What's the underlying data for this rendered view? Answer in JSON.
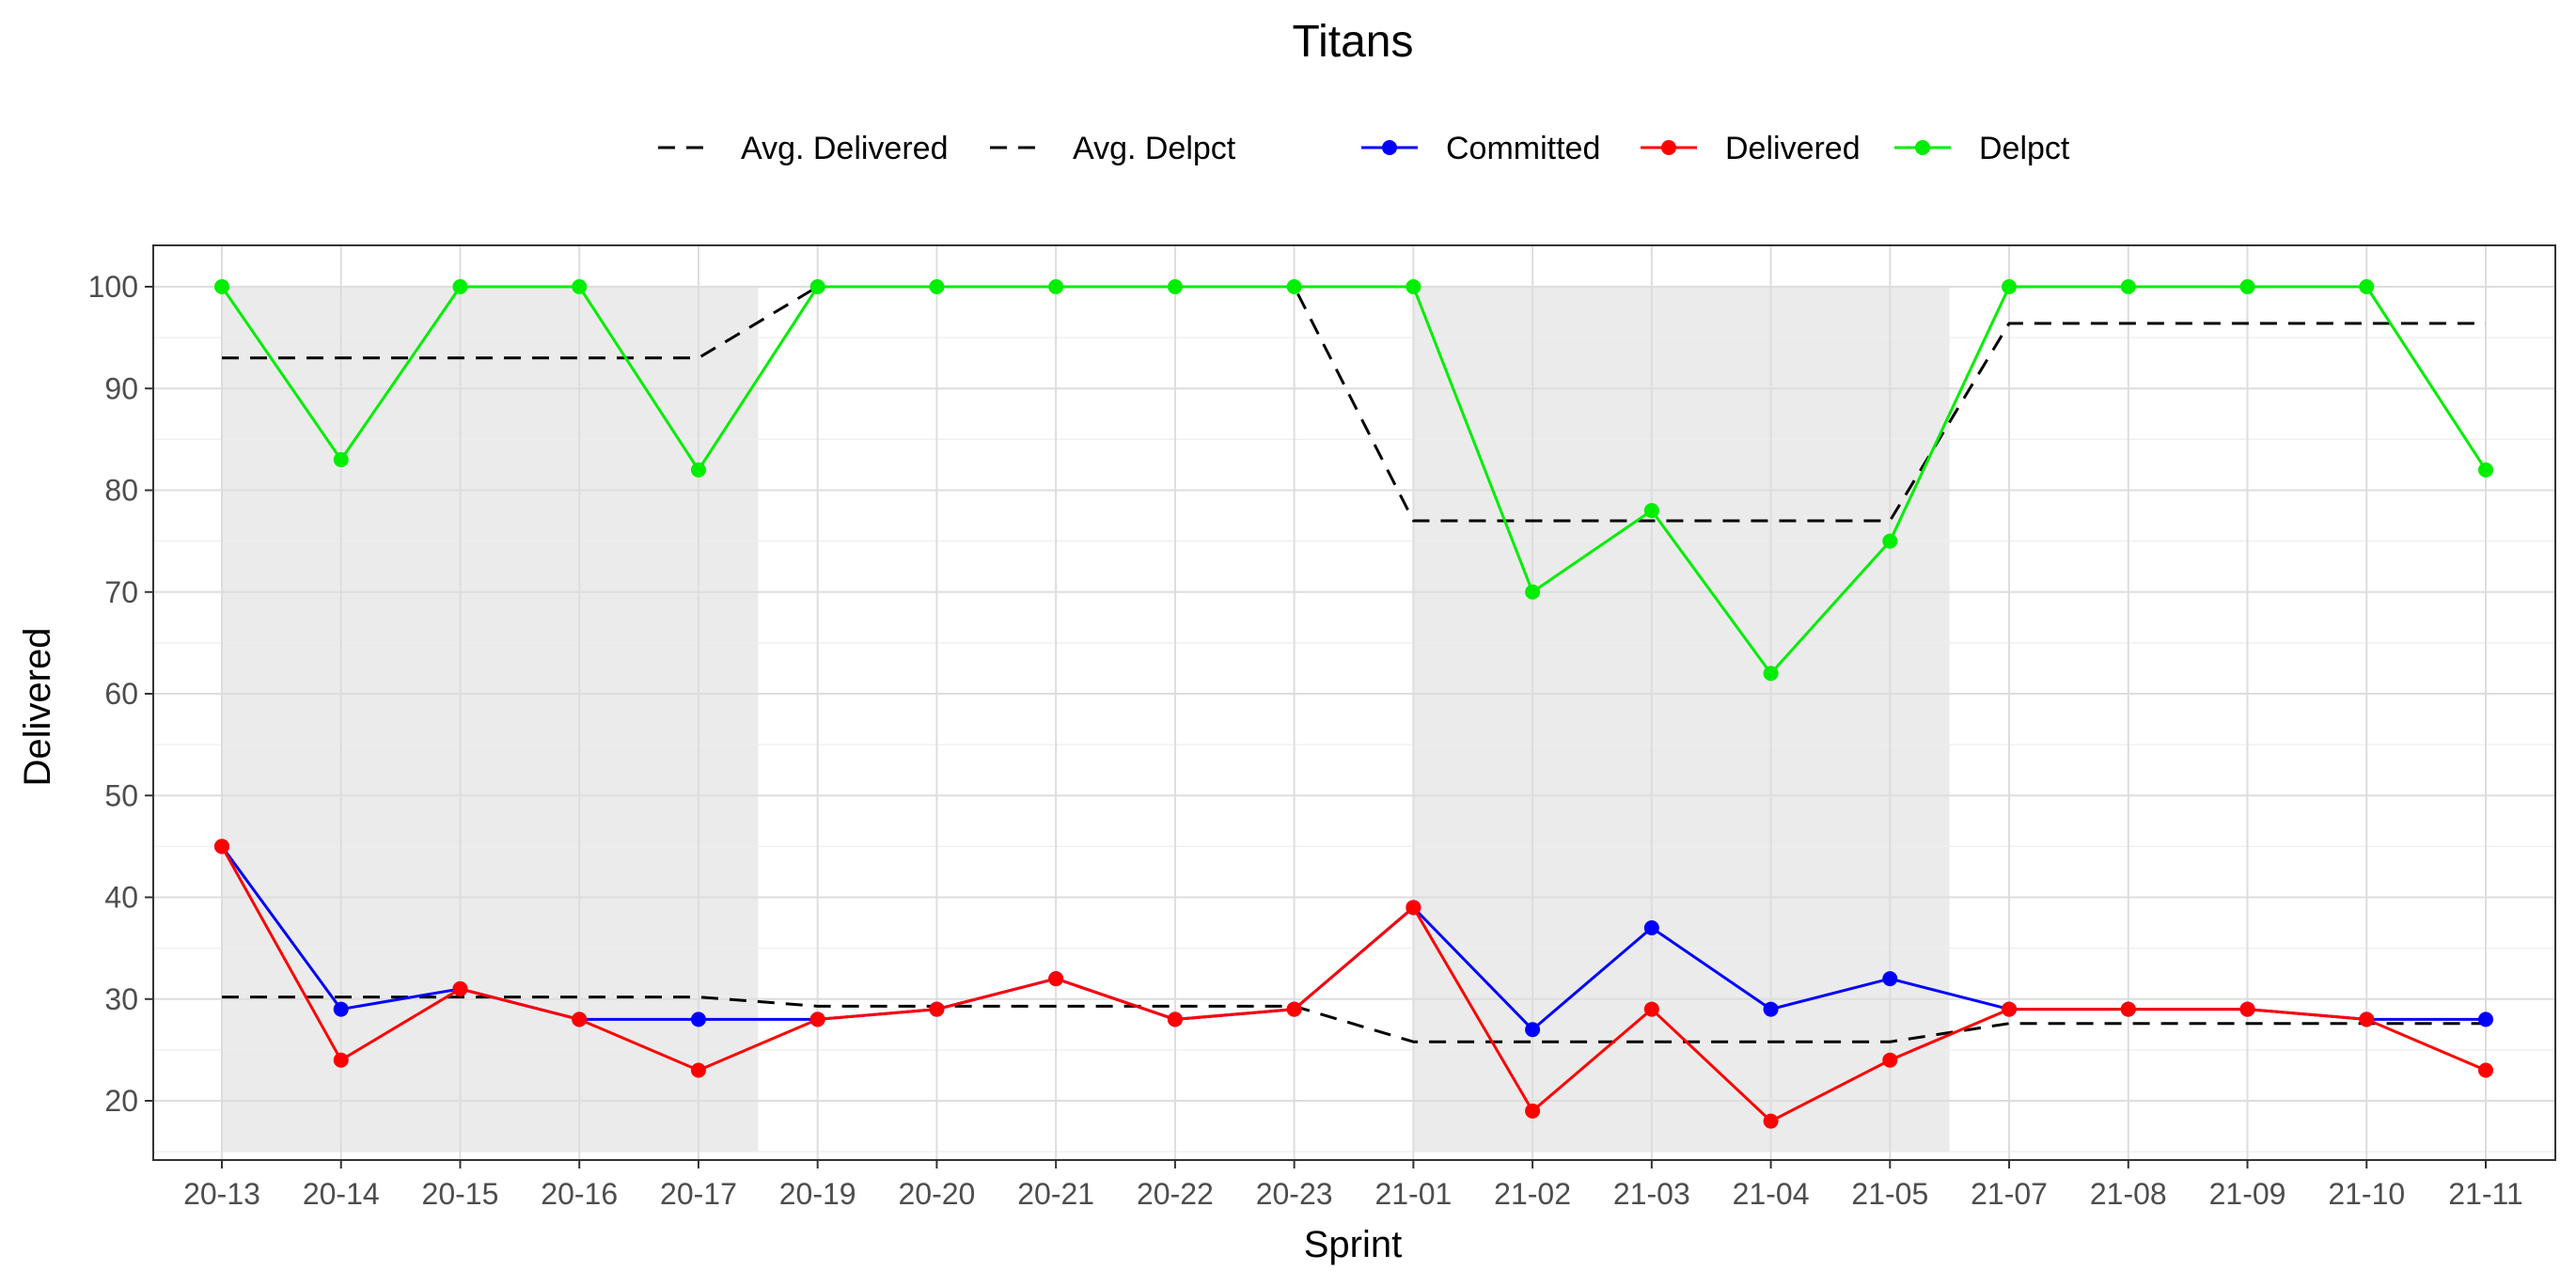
{
  "chart_data": {
    "type": "line",
    "title": "Titans",
    "xlabel": "Sprint",
    "ylabel": "Delivered",
    "ylim": [
      15,
      104
    ],
    "yticks": [
      20,
      30,
      40,
      50,
      60,
      70,
      80,
      90,
      100
    ],
    "grid": true,
    "legend_position": "top",
    "categories": [
      "20-13",
      "20-14",
      "20-15",
      "20-16",
      "20-17",
      "20-19",
      "20-20",
      "20-21",
      "20-22",
      "20-23",
      "21-01",
      "21-02",
      "21-03",
      "21-04",
      "21-05",
      "21-07",
      "21-08",
      "21-09",
      "21-10",
      "21-11"
    ],
    "shaded_ranges": [
      {
        "from": "20-13",
        "to": "20-17"
      },
      {
        "from": "21-01",
        "to": "21-05"
      }
    ],
    "series": [
      {
        "name": "Committed",
        "color": "#0000ff",
        "style": "solid-points",
        "values": [
          45,
          29,
          31,
          28,
          28,
          28,
          29,
          32,
          28,
          29,
          39,
          27,
          37,
          29,
          32,
          29,
          29,
          29,
          28,
          28
        ]
      },
      {
        "name": "Delivered",
        "color": "#ff0000",
        "style": "solid-points",
        "values": [
          45,
          24,
          31,
          28,
          23,
          28,
          29,
          32,
          28,
          29,
          39,
          19,
          29,
          18,
          24,
          29,
          29,
          29,
          28,
          23
        ]
      },
      {
        "name": "Delpct",
        "color": "#00ee00",
        "style": "solid-points",
        "values": [
          100,
          83,
          100,
          100,
          82,
          100,
          100,
          100,
          100,
          100,
          100,
          70,
          78,
          62,
          75,
          100,
          100,
          100,
          100,
          82
        ]
      },
      {
        "name": "Avg. Delivered",
        "color": "#000000",
        "style": "dashed",
        "values": [
          30.2,
          30.2,
          30.2,
          30.2,
          30.2,
          29.3,
          29.3,
          29.3,
          29.3,
          29.3,
          25.8,
          25.8,
          25.8,
          25.8,
          25.8,
          27.6,
          27.6,
          27.6,
          27.6,
          27.6
        ]
      },
      {
        "name": "Avg. Delpct",
        "color": "#000000",
        "style": "dashed",
        "values": [
          93,
          93,
          93,
          93,
          93,
          100,
          100,
          100,
          100,
          100,
          77,
          77,
          77,
          77,
          77,
          96.4,
          96.4,
          96.4,
          96.4,
          96.4
        ]
      }
    ],
    "legend": {
      "dashed_entries": [
        "Avg. Delivered",
        "Avg. Delpct"
      ],
      "point_entries": [
        "Committed",
        "Delivered",
        "Delpct"
      ]
    }
  }
}
